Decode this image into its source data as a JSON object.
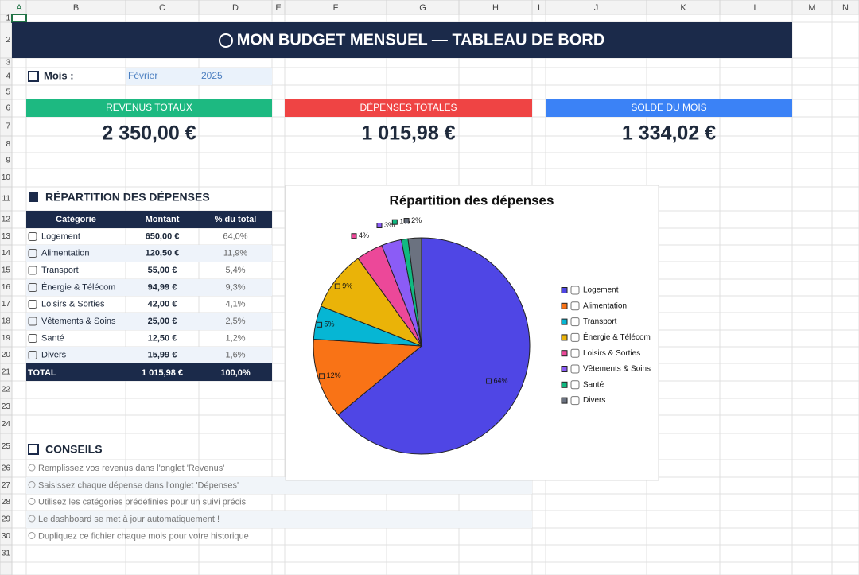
{
  "column_headers": [
    "A",
    "B",
    "C",
    "D",
    "E",
    "F",
    "G",
    "H",
    "I",
    "J",
    "K",
    "L",
    "M",
    "N"
  ],
  "row_headers": [
    "1",
    "2",
    "3",
    "4",
    "5",
    "6",
    "7",
    "8",
    "9",
    "10",
    "11",
    "12",
    "13",
    "14",
    "15",
    "16",
    "17",
    "18",
    "19",
    "20",
    "21",
    "22",
    "23",
    "24",
    "25",
    "26",
    "27",
    "28",
    "29",
    "30",
    "31"
  ],
  "header": {
    "title": "MON BUDGET MENSUEL — TABLEAU DE BORD"
  },
  "period": {
    "label": "Mois :",
    "month": "Février",
    "year": "2025"
  },
  "kpis": [
    {
      "label": "REVENUS TOTAUX",
      "value": "2 350,00 €",
      "color": "#1db981"
    },
    {
      "label": "DÉPENSES TOTALES",
      "value": "1 015,98 €",
      "color": "#ef4444"
    },
    {
      "label": "SOLDE DU MOIS",
      "value": "1 334,02 €",
      "color": "#3b82f6"
    }
  ],
  "breakdown": {
    "title": "RÉPARTITION DES DÉPENSES",
    "columns": [
      "Catégorie",
      "Montant",
      "% du total"
    ],
    "rows": [
      [
        "Logement",
        "650,00 €",
        "64,0%"
      ],
      [
        "Alimentation",
        "120,50 €",
        "11,9%"
      ],
      [
        "Transport",
        "55,00 €",
        "5,4%"
      ],
      [
        "Énergie & Télécom",
        "94,99 €",
        "9,3%"
      ],
      [
        "Loisirs & Sorties",
        "42,00 €",
        "4,1%"
      ],
      [
        "Vêtements & Soins",
        "25,00 €",
        "2,5%"
      ],
      [
        "Santé",
        "12,50 €",
        "1,2%"
      ],
      [
        "Divers",
        "15,99 €",
        "1,6%"
      ]
    ],
    "total": [
      "TOTAL",
      "1 015,98 €",
      "100,0%"
    ]
  },
  "chart_data": {
    "type": "pie",
    "title": "Répartition des dépenses",
    "categories": [
      "Logement",
      "Alimentation",
      "Transport",
      "Énergie & Télécom",
      "Loisirs & Sorties",
      "Vêtements & Soins",
      "Santé",
      "Divers"
    ],
    "values": [
      64,
      12,
      5,
      9,
      4,
      3,
      1,
      2
    ],
    "value_labels": [
      "64%",
      "12%",
      "5%",
      "9%",
      "4%",
      "3%",
      "1%",
      "2%"
    ],
    "colors": [
      "#4f46e5",
      "#f97316",
      "#06b6d4",
      "#eab308",
      "#ec4899",
      "#8b5cf6",
      "#10b981",
      "#6b7280"
    ],
    "legend": "right"
  },
  "tips": {
    "title": "CONSEILS",
    "items": [
      "Remplissez vos revenus dans l'onglet 'Revenus'",
      "Saisissez chaque dépense dans l'onglet 'Dépenses'",
      "Utilisez les catégories prédéfinies pour un suivi précis",
      "Le dashboard se met à jour automatiquement !",
      "Dupliquez ce fichier chaque mois pour votre historique"
    ]
  }
}
